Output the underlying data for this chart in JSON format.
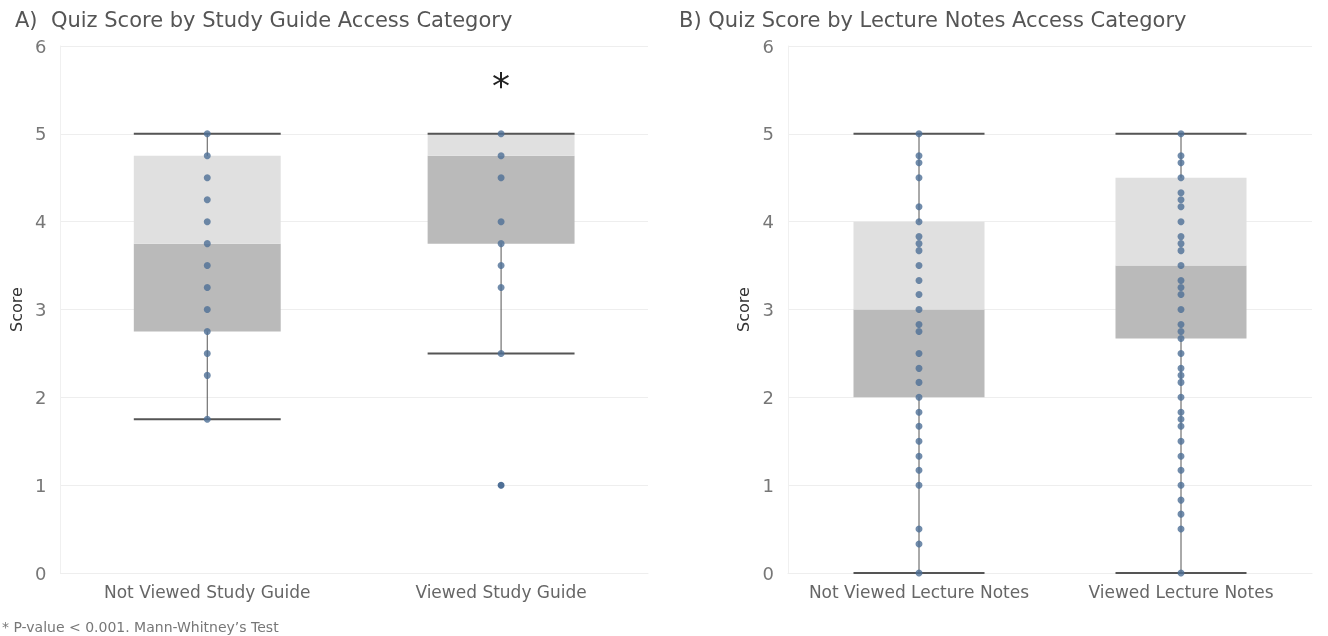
{
  "chart_data": [
    {
      "type": "box",
      "title": "A)  Quiz Score by Study Guide Access Category",
      "ylabel": "Score",
      "categories": [
        "Not Viewed Study Guide",
        "Viewed Study Guide"
      ],
      "ylim": [
        0,
        6
      ],
      "yticks": [
        0,
        1,
        2,
        3,
        4,
        5,
        6
      ],
      "grid": "y",
      "marker": "circle",
      "series": [
        {
          "type": "box",
          "color": "#bababa",
          "boxes": [
            {
              "low": 1.75,
              "q1": 2.75,
              "median": 3.75,
              "q3": 4.75,
              "high": 5
            },
            {
              "low": 2.5,
              "q1": 3.75,
              "median": 4.75,
              "q3": 5,
              "high": 5,
              "outliers": [
                1
              ]
            }
          ]
        },
        {
          "type": "scatter",
          "color": "#4e6f96",
          "x": [
            "Not Viewed Study Guide",
            "Not Viewed Study Guide",
            "Not Viewed Study Guide",
            "Not Viewed Study Guide",
            "Not Viewed Study Guide",
            "Not Viewed Study Guide",
            "Not Viewed Study Guide",
            "Not Viewed Study Guide",
            "Not Viewed Study Guide",
            "Not Viewed Study Guide",
            "Not Viewed Study Guide",
            "Not Viewed Study Guide",
            "Not Viewed Study Guide"
          ],
          "values": [
            5,
            4.75,
            4.5,
            4.25,
            4,
            3.75,
            3.5,
            3.25,
            3,
            2.75,
            2.5,
            2.25,
            1.75
          ]
        },
        {
          "type": "scatter",
          "color": "#4e6f96",
          "x": [
            "Viewed Study Guide",
            "Viewed Study Guide",
            "Viewed Study Guide",
            "Viewed Study Guide",
            "Viewed Study Guide",
            "Viewed Study Guide",
            "Viewed Study Guide",
            "Viewed Study Guide"
          ],
          "values": [
            5,
            4.75,
            4.5,
            4,
            3.75,
            3.5,
            3.25,
            2.5
          ]
        }
      ],
      "annotations": [
        "*",
        "* P-value < 0.001. Mann-Whitney’s Test"
      ]
    },
    {
      "type": "box",
      "title": "B) Quiz Score by Lecture Notes Access Category",
      "ylabel": "Score",
      "categories": [
        "Not Viewed Lecture Notes",
        "Viewed Lecture Notes"
      ],
      "ylim": [
        0,
        6
      ],
      "yticks": [
        0,
        1,
        2,
        3,
        4,
        5,
        6
      ],
      "grid": "y",
      "marker": "circle",
      "series": [
        {
          "type": "box",
          "color": "#bababa",
          "boxes": [
            {
              "low": 0,
              "q1": 2,
              "median": 3,
              "q3": 4,
              "high": 5
            },
            {
              "low": 0,
              "q1": 2.67,
              "median": 3.5,
              "q3": 4.5,
              "high": 5
            }
          ]
        },
        {
          "type": "scatter",
          "color": "#4e6f96",
          "x": [
            "Not Viewed Lecture Notes",
            "Not Viewed Lecture Notes",
            "Not Viewed Lecture Notes",
            "Not Viewed Lecture Notes",
            "Not Viewed Lecture Notes",
            "Not Viewed Lecture Notes",
            "Not Viewed Lecture Notes",
            "Not Viewed Lecture Notes",
            "Not Viewed Lecture Notes",
            "Not Viewed Lecture Notes",
            "Not Viewed Lecture Notes",
            "Not Viewed Lecture Notes",
            "Not Viewed Lecture Notes",
            "Not Viewed Lecture Notes",
            "Not Viewed Lecture Notes",
            "Not Viewed Lecture Notes",
            "Not Viewed Lecture Notes",
            "Not Viewed Lecture Notes",
            "Not Viewed Lecture Notes",
            "Not Viewed Lecture Notes",
            "Not Viewed Lecture Notes",
            "Not Viewed Lecture Notes",
            "Not Viewed Lecture Notes",
            "Not Viewed Lecture Notes",
            "Not Viewed Lecture Notes",
            "Not Viewed Lecture Notes",
            "Not Viewed Lecture Notes",
            "Not Viewed Lecture Notes"
          ],
          "values": [
            5,
            4.75,
            4.67,
            4.5,
            4.17,
            4,
            3.83,
            3.75,
            3.67,
            3.5,
            3.33,
            3.17,
            3,
            2.83,
            2.75,
            2.5,
            2.33,
            2.17,
            2,
            1.83,
            1.67,
            1.5,
            1.33,
            1.17,
            1,
            0.5,
            0.33,
            0
          ]
        },
        {
          "type": "scatter",
          "color": "#4e6f96",
          "x": [
            "Viewed Lecture Notes",
            "Viewed Lecture Notes",
            "Viewed Lecture Notes",
            "Viewed Lecture Notes",
            "Viewed Lecture Notes",
            "Viewed Lecture Notes",
            "Viewed Lecture Notes",
            "Viewed Lecture Notes",
            "Viewed Lecture Notes",
            "Viewed Lecture Notes",
            "Viewed Lecture Notes",
            "Viewed Lecture Notes",
            "Viewed Lecture Notes",
            "Viewed Lecture Notes",
            "Viewed Lecture Notes",
            "Viewed Lecture Notes",
            "Viewed Lecture Notes",
            "Viewed Lecture Notes",
            "Viewed Lecture Notes",
            "Viewed Lecture Notes",
            "Viewed Lecture Notes",
            "Viewed Lecture Notes",
            "Viewed Lecture Notes",
            "Viewed Lecture Notes",
            "Viewed Lecture Notes",
            "Viewed Lecture Notes",
            "Viewed Lecture Notes",
            "Viewed Lecture Notes",
            "Viewed Lecture Notes",
            "Viewed Lecture Notes",
            "Viewed Lecture Notes",
            "Viewed Lecture Notes",
            "Viewed Lecture Notes",
            "Viewed Lecture Notes",
            "Viewed Lecture Notes"
          ],
          "values": [
            5,
            4.75,
            4.67,
            4.5,
            4.33,
            4.25,
            4.17,
            4,
            3.83,
            3.75,
            3.67,
            3.5,
            3.33,
            3.25,
            3.17,
            3,
            2.83,
            2.75,
            2.67,
            2.5,
            2.33,
            2.25,
            2.17,
            2,
            1.83,
            1.75,
            1.67,
            1.5,
            1.33,
            1.17,
            1,
            0.83,
            0.67,
            0.5,
            0
          ]
        }
      ]
    }
  ]
}
